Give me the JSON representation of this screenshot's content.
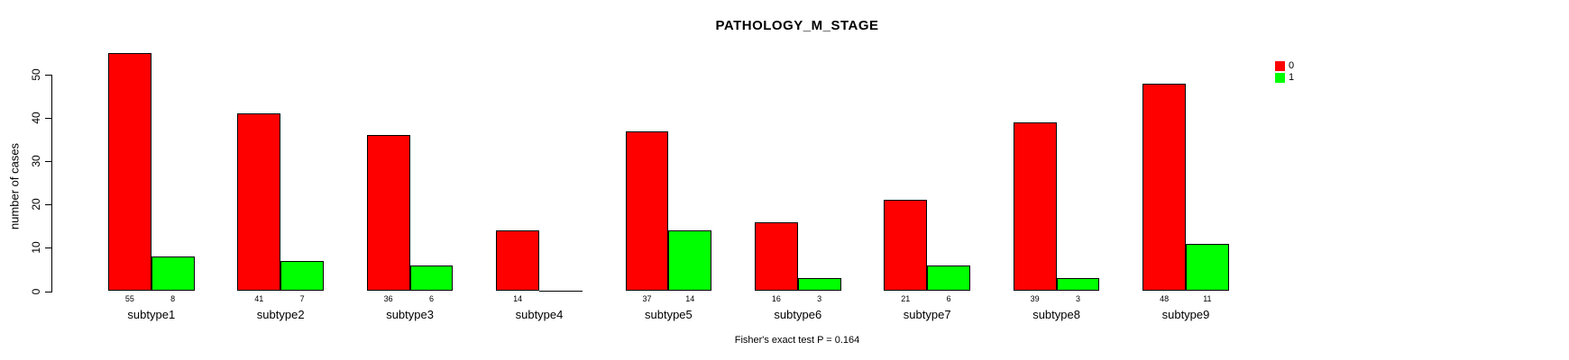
{
  "title": "PATHOLOGY_M_STAGE",
  "caption": "Fisher's exact test P = 0.164",
  "colors": {
    "series0": "#ff0000",
    "series1": "#00ff00",
    "axis": "#000000",
    "background": "#ffffff"
  },
  "chart_data": {
    "type": "bar",
    "title": "PATHOLOGY_M_STAGE",
    "xlabel": "",
    "ylabel": "number of cases",
    "ylim": [
      0,
      55
    ],
    "yticks": [
      0,
      10,
      20,
      30,
      40,
      50
    ],
    "grid": false,
    "legend_position": "top-right",
    "categories": [
      "subtype1",
      "subtype2",
      "subtype3",
      "subtype4",
      "subtype5",
      "subtype6",
      "subtype7",
      "subtype8",
      "subtype9"
    ],
    "series": [
      {
        "name": "0",
        "color": "#ff0000",
        "values": [
          55,
          41,
          36,
          14,
          37,
          16,
          21,
          39,
          48
        ]
      },
      {
        "name": "1",
        "color": "#00ff00",
        "values": [
          8,
          7,
          6,
          0,
          14,
          3,
          6,
          3,
          11
        ]
      }
    ],
    "bar_value_labels": [
      [
        "55",
        "41",
        "36",
        "14",
        "37",
        "16",
        "21",
        "39",
        "48"
      ],
      [
        "8",
        "7",
        "6",
        "",
        "14",
        "3",
        "6",
        "3",
        "11"
      ]
    ],
    "annotation": "Fisher's exact test P = 0.164"
  }
}
